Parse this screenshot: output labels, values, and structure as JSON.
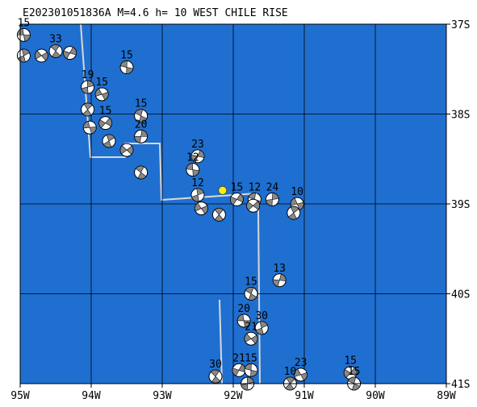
{
  "map": {
    "title": "E202301051836A M=4.6 h= 10 WEST CHILE RISE",
    "xlim": [
      -95,
      -89
    ],
    "ylim": [
      -41,
      -37
    ],
    "xticks": [
      {
        "value": -95,
        "label": "95W"
      },
      {
        "value": -94,
        "label": "94W"
      },
      {
        "value": -93,
        "label": "93W"
      },
      {
        "value": -92,
        "label": "92W"
      },
      {
        "value": -91,
        "label": "91W"
      },
      {
        "value": -90,
        "label": "90W"
      },
      {
        "value": -89,
        "label": "89W"
      }
    ],
    "yticks": [
      {
        "value": -37,
        "label": "37S"
      },
      {
        "value": -38,
        "label": "38S"
      },
      {
        "value": -39,
        "label": "39S"
      },
      {
        "value": -40,
        "label": "40S"
      },
      {
        "value": -41,
        "label": "41S"
      }
    ],
    "epicenter": {
      "lon": -92.15,
      "lat": -38.85
    },
    "events": [
      {
        "lon": -94.95,
        "lat": -37.12,
        "depth": "15"
      },
      {
        "lon": -94.95,
        "lat": -37.35
      },
      {
        "lon": -94.7,
        "lat": -37.35
      },
      {
        "lon": -94.5,
        "lat": -37.3,
        "depth": "33"
      },
      {
        "lon": -94.3,
        "lat": -37.32
      },
      {
        "lon": -93.5,
        "lat": -37.48,
        "depth": "15"
      },
      {
        "lon": -94.05,
        "lat": -37.7,
        "depth": "19"
      },
      {
        "lon": -93.85,
        "lat": -37.78,
        "depth": "15"
      },
      {
        "lon": -94.05,
        "lat": -37.95
      },
      {
        "lon": -93.8,
        "lat": -38.1,
        "depth": "15"
      },
      {
        "lon": -93.3,
        "lat": -38.02,
        "depth": "15"
      },
      {
        "lon": -93.3,
        "lat": -38.25,
        "depth": "20"
      },
      {
        "lon": -94.02,
        "lat": -38.15
      },
      {
        "lon": -93.75,
        "lat": -38.3
      },
      {
        "lon": -93.5,
        "lat": -38.4
      },
      {
        "lon": -93.3,
        "lat": -38.65
      },
      {
        "lon": -92.5,
        "lat": -38.47,
        "depth": "23"
      },
      {
        "lon": -92.57,
        "lat": -38.62,
        "depth": "12"
      },
      {
        "lon": -92.5,
        "lat": -38.9,
        "depth": "12"
      },
      {
        "lon": -92.45,
        "lat": -39.05
      },
      {
        "lon": -92.2,
        "lat": -39.12
      },
      {
        "lon": -91.95,
        "lat": -38.95,
        "depth": "15"
      },
      {
        "lon": -91.7,
        "lat": -38.95,
        "depth": "12"
      },
      {
        "lon": -91.45,
        "lat": -38.95,
        "depth": "24"
      },
      {
        "lon": -91.1,
        "lat": -39.0,
        "depth": "10"
      },
      {
        "lon": -91.15,
        "lat": -39.1
      },
      {
        "lon": -91.72,
        "lat": -39.02
      },
      {
        "lon": -91.75,
        "lat": -40.0,
        "depth": "15"
      },
      {
        "lon": -91.35,
        "lat": -39.85,
        "depth": "13"
      },
      {
        "lon": -91.85,
        "lat": -40.3,
        "depth": "20"
      },
      {
        "lon": -91.6,
        "lat": -40.38,
        "depth": "30"
      },
      {
        "lon": -91.75,
        "lat": -40.5,
        "depth": "21"
      },
      {
        "lon": -92.25,
        "lat": -40.92,
        "depth": "30"
      },
      {
        "lon": -91.92,
        "lat": -40.85,
        "depth": "21"
      },
      {
        "lon": -91.75,
        "lat": -40.85,
        "depth": "15"
      },
      {
        "lon": -91.8,
        "lat": -41.0
      },
      {
        "lon": -91.05,
        "lat": -40.9,
        "depth": "23"
      },
      {
        "lon": -91.2,
        "lat": -41.0,
        "depth": "10"
      },
      {
        "lon": -90.35,
        "lat": -40.88,
        "depth": "15"
      },
      {
        "lon": -90.3,
        "lat": -41.0,
        "depth": "15"
      }
    ]
  }
}
